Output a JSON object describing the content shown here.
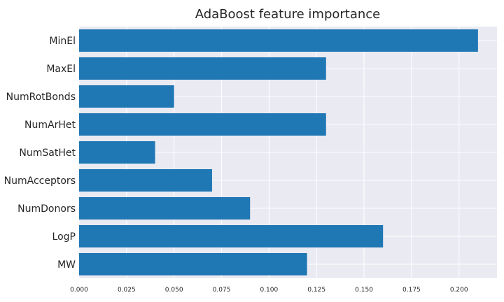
{
  "chart_data": {
    "type": "bar",
    "orientation": "horizontal",
    "title": "AdaBoost feature importance",
    "xlabel": "",
    "ylabel": "",
    "categories": [
      "MW",
      "LogP",
      "NumDonors",
      "NumAcceptors",
      "NumSatHet",
      "NumArHet",
      "NumRotBonds",
      "MaxEl",
      "MinEl"
    ],
    "values": [
      0.12,
      0.16,
      0.09,
      0.07,
      0.04,
      0.13,
      0.05,
      0.13,
      0.21
    ],
    "xlim": [
      0,
      0.22
    ],
    "xticks": [
      "0.000",
      "0.025",
      "0.050",
      "0.075",
      "0.100",
      "0.125",
      "0.150",
      "0.175",
      "0.200"
    ],
    "grid": true,
    "colors": {
      "bar": "#1f77b4",
      "background": "#eaeaf2",
      "grid": "#ffffff"
    }
  }
}
